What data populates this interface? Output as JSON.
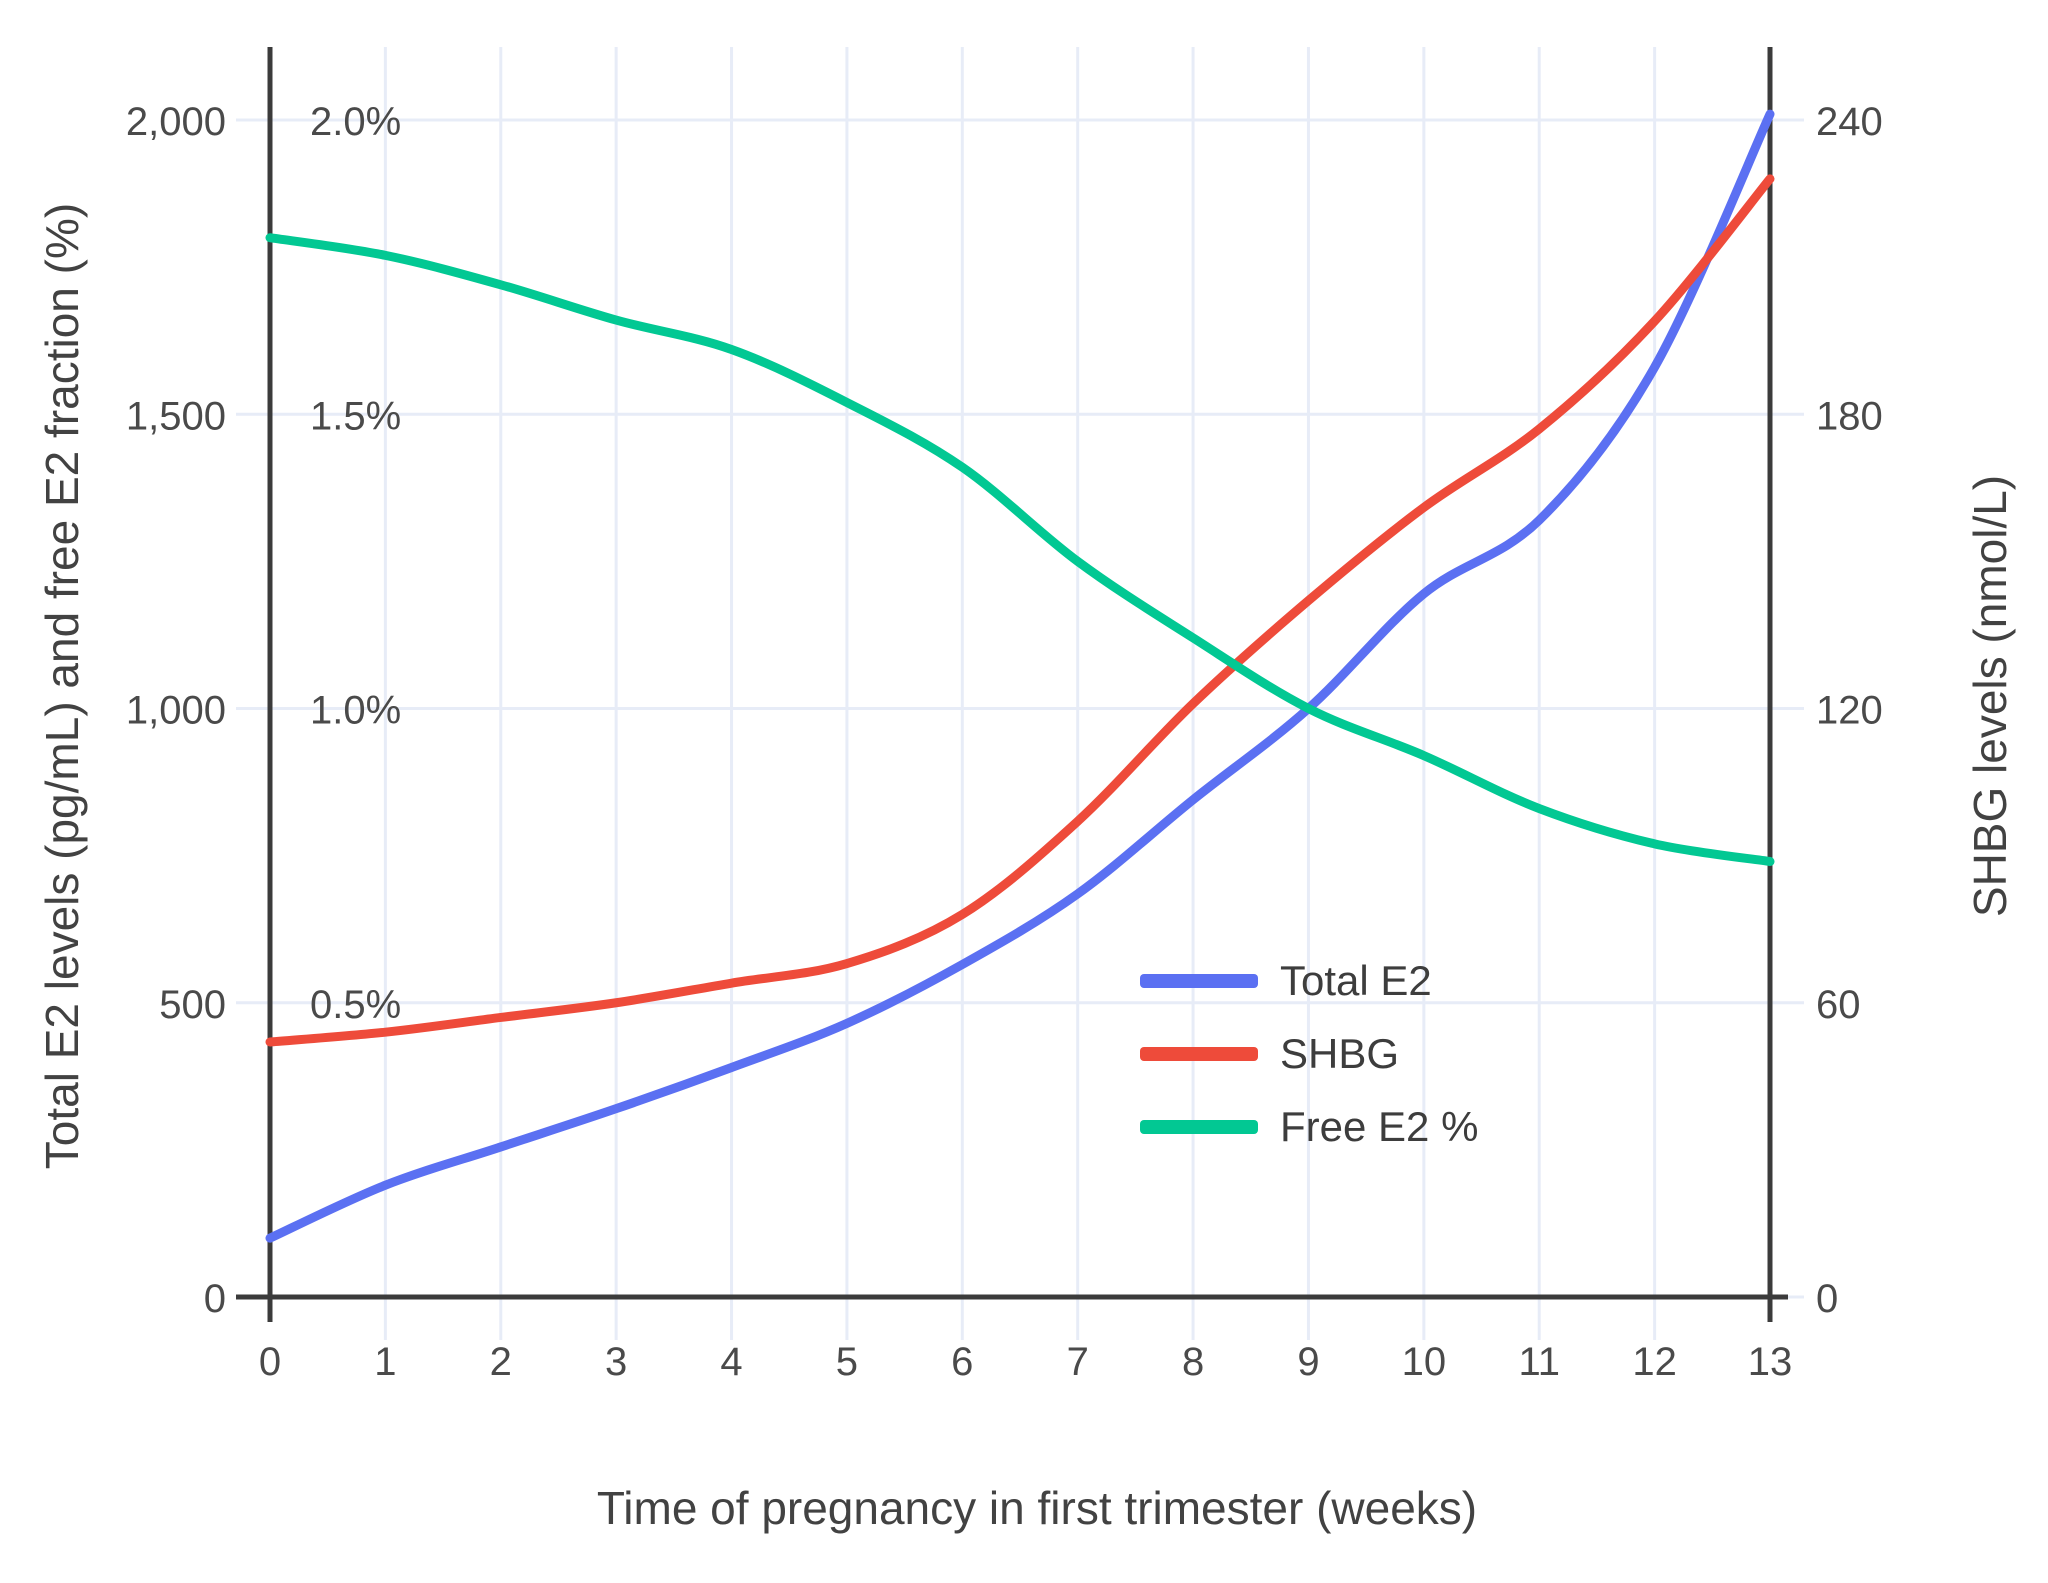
{
  "chart": {
    "x_axis": {
      "title": "Time of pregnancy in first trimester (weeks)",
      "ticks": [
        {
          "v": 0,
          "label": "0"
        },
        {
          "v": 1,
          "label": "1"
        },
        {
          "v": 2,
          "label": "2"
        },
        {
          "v": 3,
          "label": "3"
        },
        {
          "v": 4,
          "label": "4"
        },
        {
          "v": 5,
          "label": "5"
        },
        {
          "v": 6,
          "label": "6"
        },
        {
          "v": 7,
          "label": "7"
        },
        {
          "v": 8,
          "label": "8"
        },
        {
          "v": 9,
          "label": "9"
        },
        {
          "v": 10,
          "label": "10"
        },
        {
          "v": 11,
          "label": "11"
        },
        {
          "v": 12,
          "label": "12"
        },
        {
          "v": 13,
          "label": "13"
        }
      ]
    },
    "y_left": {
      "title": "Total E2 levels (pg/mL) and free E2 fraction (%)",
      "ticks": [
        {
          "v": 0,
          "label": "0"
        },
        {
          "v": 500,
          "label": "500"
        },
        {
          "v": 1000,
          "label": "1,000"
        },
        {
          "v": 1500,
          "label": "1,500"
        },
        {
          "v": 2000,
          "label": "2,000"
        }
      ],
      "pct_ticks": [
        {
          "v": 500,
          "label": "0.5%"
        },
        {
          "v": 1000,
          "label": "1.0%"
        },
        {
          "v": 1500,
          "label": "1.5%"
        },
        {
          "v": 2000,
          "label": "2.0%"
        }
      ]
    },
    "y_right": {
      "title": "SHBG levels (nmol/L)",
      "ticks": [
        {
          "v": 0,
          "label": "0"
        },
        {
          "v": 60,
          "label": "60"
        },
        {
          "v": 120,
          "label": "120"
        },
        {
          "v": 180,
          "label": "180"
        },
        {
          "v": 240,
          "label": "240"
        }
      ]
    },
    "legend": [
      {
        "label": "Total E2",
        "color": "#5b70f2"
      },
      {
        "label": "SHBG",
        "color": "#ee4b3a"
      },
      {
        "label": "Free E2 %",
        "color": "#02c893"
      }
    ],
    "colors": {
      "grid": "#e7ecf7",
      "axis": "#3b3b3b",
      "tick_text": "#4a4a4a",
      "title_text": "#424242",
      "background": "#ffffff"
    }
  },
  "chart_data": {
    "type": "line",
    "x_label": "Time of pregnancy in first trimester (weeks)",
    "x": [
      0,
      1,
      2,
      3,
      4,
      5,
      6,
      7,
      8,
      9,
      10,
      11,
      12,
      13
    ],
    "xlim": [
      0,
      13
    ],
    "ylim_left_pgml": [
      0,
      2000
    ],
    "ylim_left_pct": [
      0.0,
      2.0
    ],
    "ylim_right_nmol": [
      0,
      240
    ],
    "grid": true,
    "legend_position": "inside-middle-right",
    "series": [
      {
        "name": "Total E2",
        "axis": "left",
        "unit": "pg/mL",
        "color": "#5b70f2",
        "values": [
          100,
          190,
          255,
          320,
          390,
          465,
          565,
          685,
          845,
          1000,
          1195,
          1320,
          1580,
          2010
        ]
      },
      {
        "name": "SHBG",
        "axis": "right",
        "unit": "nmol/L",
        "color": "#ee4b3a",
        "values": [
          52,
          54,
          57,
          60,
          64,
          68,
          78,
          97,
          121,
          142,
          161,
          177,
          199,
          228
        ]
      },
      {
        "name": "Free E2 %",
        "axis": "left-percent",
        "unit": "%",
        "color": "#02c893",
        "values": [
          1.8,
          1.77,
          1.72,
          1.66,
          1.61,
          1.52,
          1.41,
          1.25,
          1.12,
          1.0,
          0.92,
          0.83,
          0.77,
          0.74
        ]
      }
    ]
  }
}
